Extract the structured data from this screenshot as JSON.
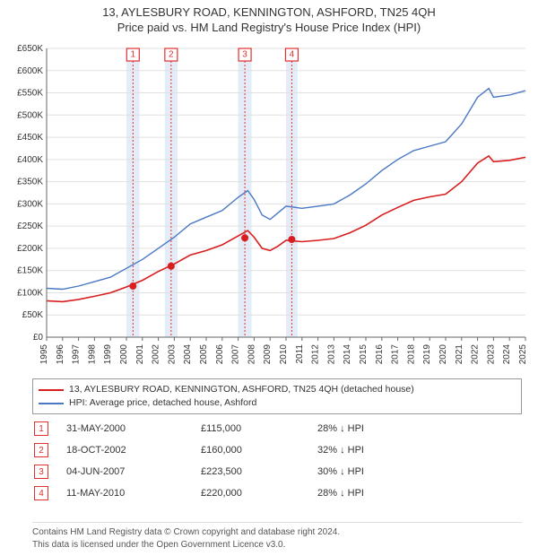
{
  "title": {
    "line1": "13, AYLESBURY ROAD, KENNINGTON, ASHFORD, TN25 4QH",
    "line2": "Price paid vs. HM Land Registry's House Price Index (HPI)"
  },
  "chart": {
    "type": "line",
    "background_color": "#ffffff",
    "grid_color": "#e0e0e0",
    "axis_color": "#666666",
    "x": {
      "min": 1995,
      "max": 2025,
      "tick_step": 1,
      "labels": [
        "1995",
        "1996",
        "1997",
        "1998",
        "1999",
        "2000",
        "2001",
        "2002",
        "2003",
        "2004",
        "2005",
        "2006",
        "2007",
        "2008",
        "2009",
        "2010",
        "2011",
        "2012",
        "2013",
        "2014",
        "2015",
        "2016",
        "2017",
        "2018",
        "2019",
        "2020",
        "2021",
        "2022",
        "2023",
        "2024",
        "2025"
      ]
    },
    "y": {
      "min": 0,
      "max": 650000,
      "tick_step": 50000,
      "labels": [
        "£0",
        "£50K",
        "£100K",
        "£150K",
        "£200K",
        "£250K",
        "£300K",
        "£350K",
        "£400K",
        "£450K",
        "£500K",
        "£550K",
        "£600K",
        "£650K"
      ]
    },
    "series": {
      "hpi": {
        "label": "HPI: Average price, detached house, Ashford",
        "color": "#4a78c4",
        "linewidth": 1.4,
        "points": [
          [
            1995,
            110000
          ],
          [
            1996,
            108000
          ],
          [
            1997,
            115000
          ],
          [
            1998,
            125000
          ],
          [
            1999,
            135000
          ],
          [
            2000,
            155000
          ],
          [
            2001,
            175000
          ],
          [
            2002,
            200000
          ],
          [
            2003,
            225000
          ],
          [
            2004,
            255000
          ],
          [
            2005,
            270000
          ],
          [
            2006,
            285000
          ],
          [
            2007,
            315000
          ],
          [
            2007.6,
            330000
          ],
          [
            2008,
            310000
          ],
          [
            2008.5,
            275000
          ],
          [
            2009,
            265000
          ],
          [
            2009.5,
            280000
          ],
          [
            2010,
            295000
          ],
          [
            2011,
            290000
          ],
          [
            2012,
            295000
          ],
          [
            2013,
            300000
          ],
          [
            2014,
            320000
          ],
          [
            2015,
            345000
          ],
          [
            2016,
            375000
          ],
          [
            2017,
            400000
          ],
          [
            2018,
            420000
          ],
          [
            2019,
            430000
          ],
          [
            2020,
            440000
          ],
          [
            2021,
            480000
          ],
          [
            2022,
            540000
          ],
          [
            2022.7,
            560000
          ],
          [
            2023,
            540000
          ],
          [
            2024,
            545000
          ],
          [
            2025,
            555000
          ]
        ]
      },
      "property": {
        "label": "13, AYLESBURY ROAD, KENNINGTON, ASHFORD, TN25 4QH (detached house)",
        "color": "#d81e1e",
        "linewidth": 1.6,
        "points": [
          [
            1995,
            82000
          ],
          [
            1996,
            80000
          ],
          [
            1997,
            85000
          ],
          [
            1998,
            92000
          ],
          [
            1999,
            100000
          ],
          [
            2000,
            113000
          ],
          [
            2001,
            128000
          ],
          [
            2002,
            148000
          ],
          [
            2003,
            165000
          ],
          [
            2004,
            185000
          ],
          [
            2005,
            195000
          ],
          [
            2006,
            208000
          ],
          [
            2007,
            228000
          ],
          [
            2007.6,
            240000
          ],
          [
            2008,
            225000
          ],
          [
            2008.5,
            200000
          ],
          [
            2009,
            195000
          ],
          [
            2009.5,
            205000
          ],
          [
            2010,
            218000
          ],
          [
            2011,
            215000
          ],
          [
            2012,
            218000
          ],
          [
            2013,
            222000
          ],
          [
            2014,
            235000
          ],
          [
            2015,
            252000
          ],
          [
            2016,
            275000
          ],
          [
            2017,
            292000
          ],
          [
            2018,
            308000
          ],
          [
            2019,
            316000
          ],
          [
            2020,
            322000
          ],
          [
            2021,
            350000
          ],
          [
            2022,
            392000
          ],
          [
            2022.7,
            408000
          ],
          [
            2023,
            395000
          ],
          [
            2024,
            398000
          ],
          [
            2025,
            405000
          ]
        ]
      }
    },
    "sale_markers": {
      "color": "#d81e1e",
      "radius": 4,
      "points": [
        [
          2000.41,
          115000
        ],
        [
          2002.8,
          160000
        ],
        [
          2007.42,
          223500
        ],
        [
          2010.36,
          220000
        ]
      ]
    },
    "events": [
      {
        "n": 1,
        "x": 2000.41,
        "band_from": 2000.0,
        "band_to": 2000.82
      },
      {
        "n": 2,
        "x": 2002.8,
        "band_from": 2002.4,
        "band_to": 2003.2
      },
      {
        "n": 3,
        "x": 2007.42,
        "band_from": 2007.0,
        "band_to": 2007.84
      },
      {
        "n": 4,
        "x": 2010.36,
        "band_from": 2010.0,
        "band_to": 2010.72
      }
    ],
    "event_box": {
      "size": 14,
      "stroke": "#e03030",
      "fill": "#ffffff",
      "text_color": "#e03030"
    },
    "event_band_color": "#e4ecf7",
    "event_line_color": "#e03030"
  },
  "legend": {
    "border_color": "#999999",
    "items": [
      {
        "color": "#d81e1e",
        "label": "13, AYLESBURY ROAD, KENNINGTON, ASHFORD, TN25 4QH (detached house)"
      },
      {
        "color": "#4a78c4",
        "label": "HPI: Average price, detached house, Ashford"
      }
    ]
  },
  "events_table": {
    "rows": [
      {
        "n": "1",
        "date": "31-MAY-2000",
        "price": "£115,000",
        "diff": "28% ↓ HPI"
      },
      {
        "n": "2",
        "date": "18-OCT-2002",
        "price": "£160,000",
        "diff": "32% ↓ HPI"
      },
      {
        "n": "3",
        "date": "04-JUN-2007",
        "price": "£223,500",
        "diff": "30% ↓ HPI"
      },
      {
        "n": "4",
        "date": "11-MAY-2010",
        "price": "£220,000",
        "diff": "28% ↓ HPI"
      }
    ]
  },
  "footer": {
    "line1": "Contains HM Land Registry data © Crown copyright and database right 2024.",
    "line2": "This data is licensed under the Open Government Licence v3.0."
  }
}
